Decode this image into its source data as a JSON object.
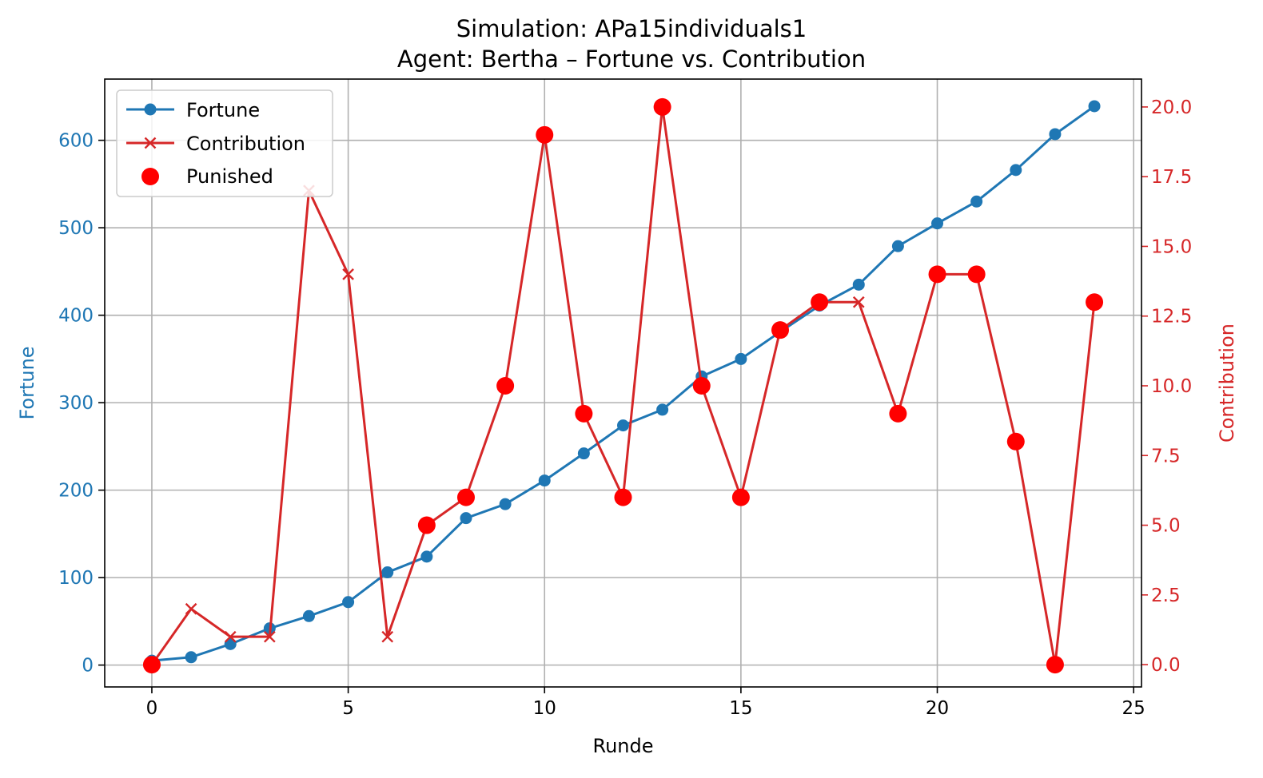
{
  "chart_data": {
    "type": "line",
    "title": "Simulation: APa15individuals1",
    "subtitle": "Agent: Bertha – Fortune vs. Contribution",
    "xlabel": "Runde",
    "ylabel_left": "Fortune",
    "ylabel_right": "Contribution",
    "xlim": [
      -1.2,
      25.2
    ],
    "ylim_left": [
      -25,
      670
    ],
    "ylim_right": [
      -0.8,
      21.0
    ],
    "x_ticks": [
      0,
      5,
      10,
      15,
      20,
      25
    ],
    "y_ticks_left": [
      0,
      100,
      200,
      300,
      400,
      500,
      600
    ],
    "y_ticks_right": [
      "0.0",
      "2.5",
      "5.0",
      "7.5",
      "10.0",
      "12.5",
      "15.0",
      "17.5",
      "20.0"
    ],
    "grid": true,
    "legend_position": "top-left",
    "colors": {
      "fortune": "#1f77b4",
      "contribution": "#d62728",
      "punished": "#ff0000",
      "grid": "#b0b0b0",
      "axis": "#000000"
    },
    "x": [
      0,
      1,
      2,
      3,
      4,
      5,
      6,
      7,
      8,
      9,
      10,
      11,
      12,
      13,
      14,
      15,
      16,
      17,
      18,
      19,
      20,
      21,
      22,
      23,
      24
    ],
    "series": [
      {
        "name": "Fortune",
        "axis": "left",
        "marker": "circle",
        "values": [
          5,
          9,
          24,
          42,
          56,
          72,
          106,
          124,
          168,
          184,
          211,
          242,
          274,
          292,
          330,
          350,
          381,
          411,
          435,
          479,
          505,
          530,
          566,
          607,
          639
        ]
      },
      {
        "name": "Contribution",
        "axis": "right",
        "marker": "x",
        "values": [
          0,
          2,
          1,
          1,
          17,
          14,
          1,
          5,
          6,
          10,
          19,
          9,
          6,
          20,
          10,
          6,
          12,
          13,
          13,
          9,
          14,
          14,
          8,
          0,
          13
        ]
      },
      {
        "name": "Punished",
        "axis": "right",
        "marker": "filled-circle",
        "x": [
          0,
          7,
          8,
          9,
          10,
          11,
          12,
          13,
          14,
          15,
          16,
          17,
          19,
          20,
          21,
          22,
          23,
          24
        ],
        "values": [
          0,
          5,
          6,
          10,
          19,
          9,
          6,
          20,
          10,
          6,
          12,
          13,
          9,
          14,
          14,
          8,
          0,
          13
        ]
      }
    ]
  }
}
